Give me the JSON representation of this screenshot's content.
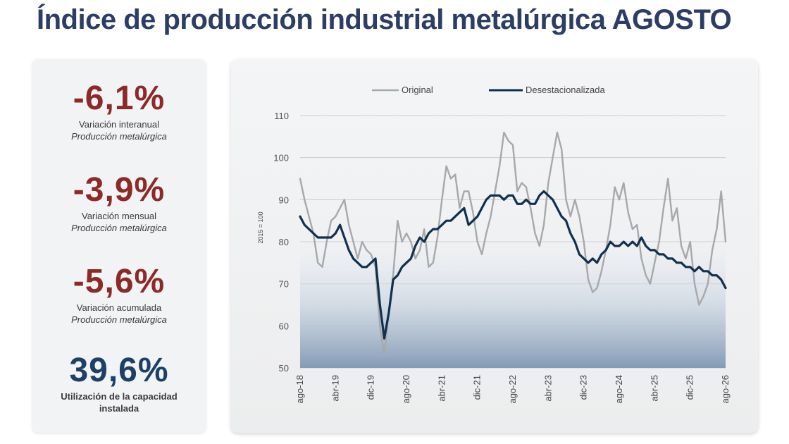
{
  "title": "Índice de producción industrial metalúrgica AGOSTO",
  "colors": {
    "negative": "#8b2a26",
    "positive": "#1d4166",
    "original_line": "#a7a8aa",
    "deseasonalized_line": "#10304f",
    "title": "#2d3e66"
  },
  "kpis": [
    {
      "value": "-6,1%",
      "label_line1": "Variación interanual",
      "label_line2": "Producción metalúrgica",
      "tone": "negative"
    },
    {
      "value": "-3,9%",
      "label_line1": "Variación mensual",
      "label_line2": "Producción metalúrgica",
      "tone": "negative"
    },
    {
      "value": "-5,6%",
      "label_line1": "Variación acumulada",
      "label_line2": "Producción metalúrgica",
      "tone": "negative"
    },
    {
      "value": "39,6%",
      "label_line1": "Utilización de la capacidad",
      "label_line2": "instalada",
      "tone": "positive"
    }
  ],
  "chart_data": {
    "type": "line",
    "title": "",
    "xlabel": "",
    "ylabel": "2015 = 100",
    "ylim": [
      50,
      110
    ],
    "yticks": [
      50,
      60,
      70,
      80,
      90,
      100,
      110
    ],
    "grid": true,
    "legend_position": "top",
    "xticks": [
      "ago-18",
      "abr-19",
      "dic-19",
      "ago-20",
      "abr-21",
      "dic-21",
      "ago-22",
      "abr-23",
      "dic-23",
      "ago-24",
      "abr-25",
      "dic-25",
      "ago-26"
    ],
    "x": [
      "ago-18",
      "sep-18",
      "oct-18",
      "nov-18",
      "dic-18",
      "ene-19",
      "feb-19",
      "mar-19",
      "abr-19",
      "may-19",
      "jun-19",
      "jul-19",
      "ago-19",
      "sep-19",
      "oct-19",
      "nov-19",
      "dic-19",
      "ene-20",
      "feb-20",
      "mar-20",
      "abr-20",
      "may-20",
      "jun-20",
      "jul-20",
      "ago-20",
      "sep-20",
      "oct-20",
      "nov-20",
      "dic-20",
      "ene-21",
      "feb-21",
      "mar-21",
      "abr-21",
      "may-21",
      "jun-21",
      "jul-21",
      "ago-21",
      "sep-21",
      "oct-21",
      "nov-21",
      "dic-21",
      "ene-22",
      "feb-22",
      "mar-22",
      "abr-22",
      "may-22",
      "jun-22",
      "jul-22",
      "ago-22",
      "sep-22",
      "oct-22",
      "nov-22",
      "dic-22",
      "ene-23",
      "feb-23",
      "mar-23",
      "abr-23",
      "may-23",
      "jun-23",
      "jul-23",
      "ago-23",
      "sep-23",
      "oct-23",
      "nov-23",
      "dic-23",
      "ene-24",
      "feb-24",
      "mar-24",
      "abr-24",
      "may-24",
      "jun-24",
      "jul-24",
      "ago-24",
      "sep-24",
      "oct-24",
      "nov-24",
      "dic-24",
      "ene-25",
      "feb-25",
      "mar-25",
      "abr-25",
      "may-25",
      "jun-25",
      "jul-25",
      "ago-25",
      "sep-25",
      "oct-25",
      "nov-25",
      "dic-25",
      "ene-26",
      "feb-26",
      "mar-26",
      "abr-26",
      "may-26",
      "jun-26",
      "jul-26",
      "ago-26"
    ],
    "series": [
      {
        "name": "Original",
        "values": [
          95,
          90,
          86,
          82,
          75,
          74,
          80,
          85,
          86,
          88,
          90,
          84,
          80,
          76,
          80,
          78,
          77,
          74,
          60,
          53,
          63,
          72,
          85,
          80,
          82,
          80,
          76,
          78,
          83,
          74,
          75,
          81,
          90,
          98,
          95,
          96,
          88,
          92,
          92,
          87,
          80,
          77,
          82,
          86,
          92,
          98,
          106,
          104,
          103,
          92,
          94,
          93,
          88,
          82,
          79,
          84,
          94,
          100,
          106,
          102,
          90,
          86,
          90,
          86,
          80,
          71,
          68,
          69,
          73,
          78,
          84,
          93,
          90,
          94,
          87,
          83,
          84,
          76,
          72,
          70,
          75,
          80,
          88,
          95,
          85,
          88,
          79,
          76,
          80,
          70,
          65,
          67,
          70,
          78,
          83,
          92,
          80
        ],
        "color": "#a7a8aa"
      },
      {
        "name": "Desestacionalizada",
        "values": [
          86,
          84,
          83,
          82,
          81,
          81,
          81,
          81,
          82,
          84,
          81,
          78,
          76,
          75,
          74,
          74,
          75,
          76,
          65,
          57,
          63,
          71,
          72,
          74,
          75,
          76,
          79,
          81,
          80,
          82,
          83,
          83,
          84,
          85,
          85,
          86,
          87,
          88,
          84,
          85,
          86,
          88,
          90,
          91,
          91,
          91,
          90,
          91,
          91,
          89,
          89,
          90,
          89,
          89,
          91,
          92,
          91,
          90,
          88,
          86,
          85,
          82,
          80,
          77,
          76,
          75,
          76,
          75,
          77,
          78,
          80,
          79,
          79,
          80,
          79,
          80,
          79,
          81,
          79,
          78,
          78,
          77,
          77,
          76,
          76,
          75,
          75,
          74,
          74,
          73,
          74,
          73,
          73,
          72,
          72,
          71,
          69
        ],
        "color": "#10304f"
      }
    ]
  }
}
